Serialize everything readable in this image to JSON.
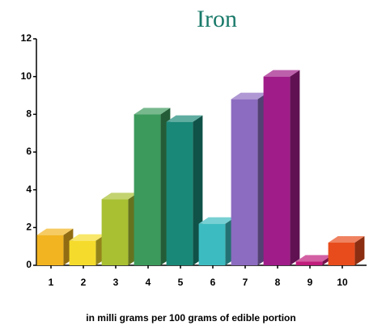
{
  "chart_data": {
    "type": "bar3d",
    "title": "Iron",
    "x_label": "in milli grams per 100 grams of edible portion",
    "categories": [
      "1",
      "2",
      "3",
      "4",
      "5",
      "6",
      "7",
      "8",
      "9",
      "10"
    ],
    "values": [
      1.6,
      1.3,
      3.5,
      8.0,
      7.6,
      2.2,
      8.8,
      10.0,
      0.2,
      1.2
    ],
    "colors": [
      "#f2b420",
      "#f5dc2c",
      "#a8c032",
      "#3c9a5c",
      "#1a8878",
      "#3cbcc0",
      "#8c6cc0",
      "#a01c88",
      "#c01c7c",
      "#e84c1c"
    ],
    "ylim": [
      0,
      12
    ],
    "yticks": [
      0,
      2,
      4,
      6,
      8,
      10,
      12
    ]
  }
}
